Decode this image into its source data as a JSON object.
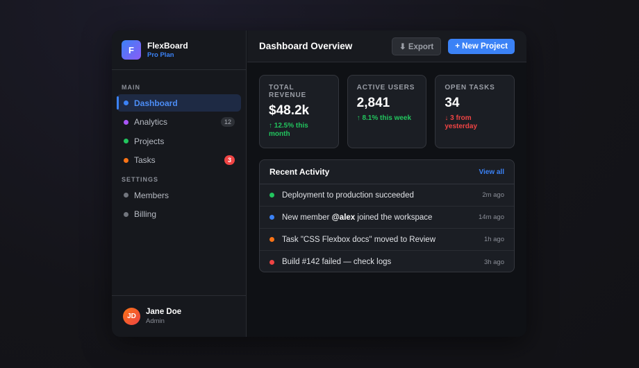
{
  "brand": {
    "logo": "F",
    "name": "FlexBoard",
    "plan": "Pro Plan"
  },
  "nav": [
    {
      "title": "MAIN",
      "items": [
        {
          "label": "Dashboard"
        },
        {
          "label": "Analytics",
          "badge": "12"
        },
        {
          "label": "Projects"
        },
        {
          "label": "Tasks",
          "badge": "3"
        }
      ]
    },
    {
      "title": "SETTINGS",
      "items": [
        {
          "label": "Members"
        },
        {
          "label": "Billing"
        }
      ]
    }
  ],
  "user": {
    "initials": "JD",
    "name": "Jane Doe",
    "role": "Admin"
  },
  "header": {
    "title": "Dashboard Overview",
    "export": "⬇ Export",
    "new_project": "+ New Project"
  },
  "stats": [
    {
      "label": "TOTAL REVENUE",
      "value": "$48.2k",
      "change": "↑ 12.5% this month"
    },
    {
      "label": "ACTIVE USERS",
      "value": "2,841",
      "change": "↑ 8.1% this week"
    },
    {
      "label": "OPEN TASKS",
      "value": "34",
      "change": "↓ 3 from yesterday"
    }
  ],
  "activity": {
    "title": "Recent Activity",
    "link": "View all",
    "items": [
      {
        "text": "Deployment to production succeeded",
        "time": "2m ago"
      },
      {
        "text_before": "New member ",
        "mention": "@alex",
        "text_after": " joined the workspace",
        "time": "14m ago"
      },
      {
        "text": "Task \"CSS Flexbox docs\" moved to Review",
        "time": "1h ago"
      },
      {
        "text": "Build #142 failed — check logs",
        "time": "3h ago"
      }
    ]
  }
}
